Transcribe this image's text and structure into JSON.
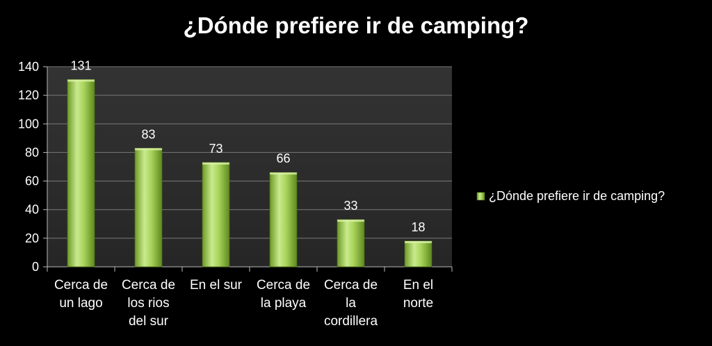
{
  "chart_data": {
    "type": "bar",
    "title": "¿Dónde prefiere ir de camping?",
    "categories": [
      [
        "Cerca de",
        "un lago"
      ],
      [
        "Cerca de",
        "los rios",
        "del sur"
      ],
      [
        "En el sur"
      ],
      [
        "Cerca de",
        "la playa"
      ],
      [
        "Cerca de",
        "la",
        "cordillera"
      ],
      [
        "En el",
        "norte"
      ]
    ],
    "series": [
      {
        "name": "¿Dónde prefiere ir de camping?",
        "values": [
          131,
          83,
          73,
          66,
          33,
          18
        ]
      }
    ],
    "data_labels": [
      "131",
      "83",
      "73",
      "66",
      "33",
      "18"
    ],
    "ylim": [
      0,
      140
    ],
    "yticks": [
      0,
      20,
      40,
      60,
      80,
      100,
      120,
      140
    ],
    "grid": true,
    "legend_position": "right",
    "colors": {
      "background": "#000000",
      "plot_area": "#2b2b2b",
      "gridline": "#7a7a7a",
      "bar_light": "#c8e88a",
      "bar_mid": "#9bc84a",
      "bar_dark": "#5e8a1e",
      "text": "#ffffff"
    }
  }
}
